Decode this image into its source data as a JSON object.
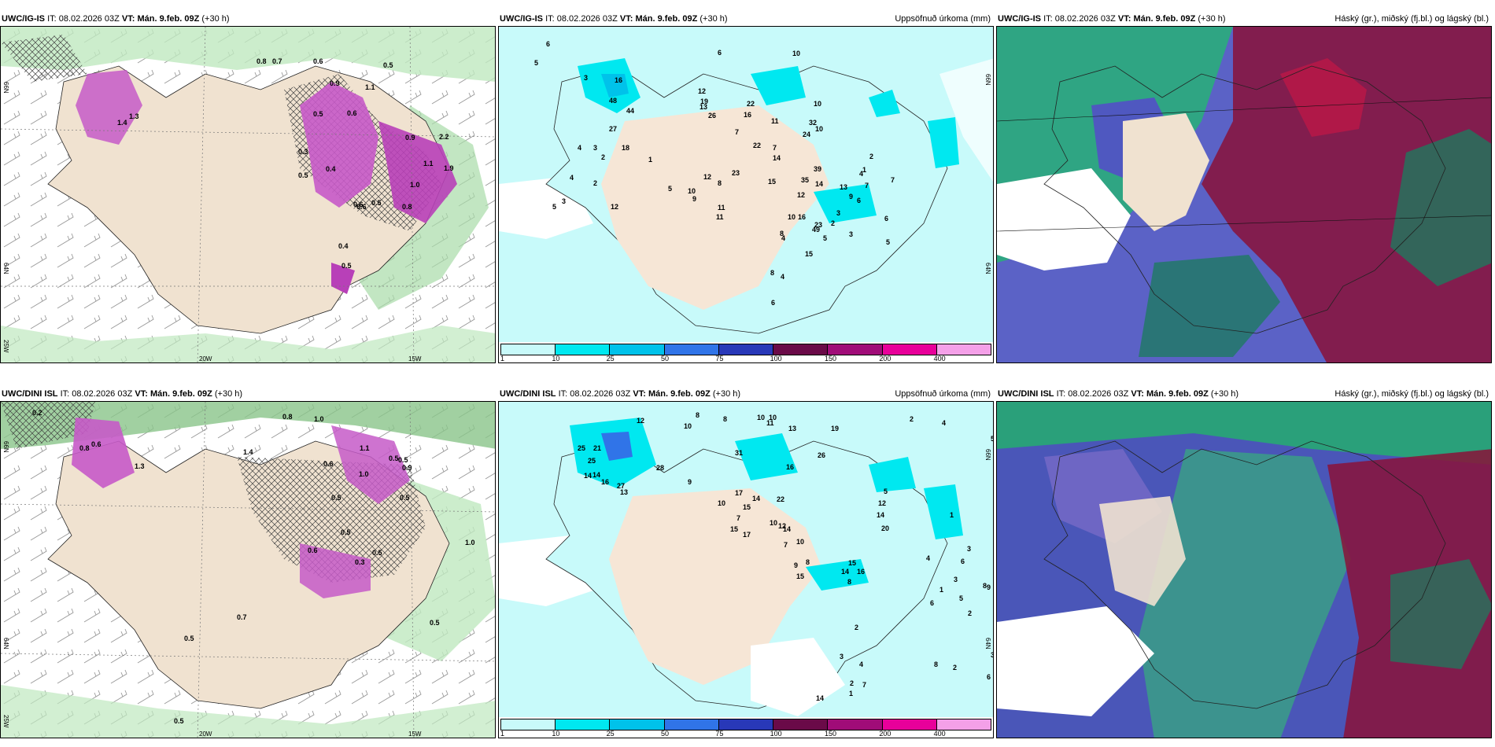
{
  "header_fields": {
    "it_label": "IT:",
    "vt_label": "VT:"
  },
  "panels": [
    {
      "model": "UWC/IG-IS",
      "it": "08.02.2026 03Z",
      "vt": "Mán. 9.feb. 09Z",
      "lead": "(+30 h)",
      "right": "",
      "lat_labels": [
        "66N",
        "64N",
        "25W"
      ],
      "lon_labels": [
        "20W",
        "15W"
      ],
      "values": [
        "0.8",
        "0.7",
        "0.6",
        "0.5",
        "0.9",
        "1.1",
        "1.3",
        "1.4",
        "0.5",
        "0.6",
        "0.3",
        "0.4",
        "0.9",
        "1.1",
        "0.5",
        "0.6",
        "2.2",
        "1.0",
        "0.8",
        "0.5",
        "1.9",
        "0.6",
        "0.4",
        "0.5"
      ]
    },
    {
      "model": "UWC/IG-IS",
      "it": "08.02.2026 03Z",
      "vt": "Mán. 9.feb. 09Z",
      "lead": "(+30 h)",
      "right": "Uppsöfnuð úrkoma (mm)",
      "lat_labels": [
        "66N",
        "64N"
      ],
      "values": [
        "6",
        "5",
        "6",
        "10",
        "3",
        "16",
        "48",
        "44",
        "12",
        "19",
        "27",
        "18",
        "4",
        "3",
        "2",
        "1",
        "4",
        "3",
        "5",
        "2",
        "12",
        "5",
        "12",
        "22",
        "16",
        "11",
        "10",
        "32",
        "24",
        "13",
        "26",
        "7",
        "22",
        "14",
        "23",
        "8",
        "10",
        "9",
        "11",
        "11",
        "10",
        "39",
        "14",
        "35",
        "15",
        "12",
        "16",
        "8",
        "23",
        "10",
        "49",
        "15",
        "8",
        "13",
        "6",
        "3",
        "2",
        "4",
        "5",
        "7",
        "9",
        "1",
        "2",
        "4",
        "7",
        "3",
        "6",
        "5",
        "4",
        "6",
        "7"
      ],
      "colorbar": {
        "ticks": [
          "1",
          "10",
          "25",
          "50",
          "75",
          "100",
          "150",
          "200",
          "400"
        ],
        "colors": [
          "#c8fafa",
          "#00e8f0",
          "#00c2ea",
          "#3074e8",
          "#2838b8",
          "#6a0a48",
          "#a00c78",
          "#e8009a",
          "#f4a0e8"
        ]
      }
    },
    {
      "model": "UWC/IG-IS",
      "it": "08.02.2026 03Z",
      "vt": "Mán. 9.feb. 09Z",
      "lead": "(+30 h)",
      "right": "Háský (gr.), miðský (fj.bl.) og lágský (bl.)"
    },
    {
      "model": "UWC/DINI ISL",
      "it": "08.02.2026 03Z",
      "vt": "Mán. 9.feb. 09Z",
      "lead": "(+30 h)",
      "right": "",
      "lat_labels": [
        "66N",
        "64N",
        "25W"
      ],
      "lon_labels": [
        "20W",
        "15W"
      ],
      "values": [
        "0.2",
        "0.8",
        "1.0",
        "0.6",
        "0.8",
        "1.4",
        "1.1",
        "0.5",
        "1.0",
        "0.5",
        "1.3",
        "0.6",
        "0.9",
        "0.5",
        "0.5",
        "0.6",
        "0.5",
        "0.3",
        "0.5",
        "1.0",
        "0.7",
        "0.5",
        "0.5",
        "0.5"
      ]
    },
    {
      "model": "UWC/DINI ISL",
      "it": "08.02.2026 03Z",
      "vt": "Mán. 9.feb. 09Z",
      "lead": "(+30 h)",
      "right": "Uppsöfnuð úrkoma (mm)",
      "lat_labels": [
        "66N",
        "64N"
      ],
      "values": [
        "12",
        "8",
        "8",
        "10",
        "10",
        "11",
        "10",
        "13",
        "19",
        "2",
        "4",
        "5",
        "25",
        "21",
        "25",
        "14",
        "16",
        "27",
        "13",
        "14",
        "28",
        "31",
        "16",
        "26",
        "9",
        "17",
        "15",
        "7",
        "10",
        "22",
        "14",
        "15",
        "17",
        "10",
        "12",
        "14",
        "7",
        "10",
        "9",
        "8",
        "15",
        "14",
        "8",
        "15",
        "16",
        "5",
        "12",
        "14",
        "20",
        "1",
        "3",
        "6",
        "4",
        "3",
        "5",
        "9",
        "6",
        "2",
        "10",
        "8",
        "1",
        "3",
        "2",
        "6",
        "8",
        "4",
        "2",
        "7",
        "14",
        "1",
        "3",
        "2"
      ],
      "colorbar": {
        "ticks": [
          "1",
          "10",
          "25",
          "50",
          "75",
          "100",
          "150",
          "200",
          "400"
        ],
        "colors": [
          "#c8fafa",
          "#00e8f0",
          "#00c2ea",
          "#3074e8",
          "#2838b8",
          "#6a0a48",
          "#a00c78",
          "#e8009a",
          "#f4a0e8"
        ]
      }
    },
    {
      "model": "UWC/DINI ISL",
      "it": "08.02.2026 03Z",
      "vt": "Mán. 9.feb. 09Z",
      "lead": "(+30 h)",
      "right": "Háský (gr.), miðský (fj.bl.) og lágský (bl.)"
    }
  ]
}
